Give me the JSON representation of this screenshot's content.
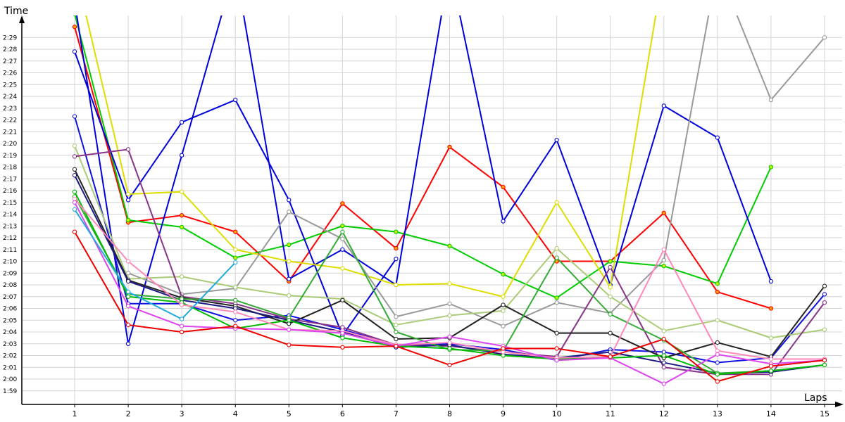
{
  "chart_data": {
    "type": "line",
    "ylabel": "Time",
    "xlabel": "Laps",
    "x": [
      1,
      2,
      3,
      4,
      5,
      6,
      7,
      8,
      9,
      10,
      11,
      12,
      13,
      14,
      15
    ],
    "y_ticks": [
      "1:59",
      "2:00",
      "2:01",
      "2:02",
      "2:03",
      "2:04",
      "2:05",
      "2:06",
      "2:07",
      "2:08",
      "2:09",
      "2:10",
      "2:11",
      "2:12",
      "2:13",
      "2:14",
      "2:15",
      "2:16",
      "2:17",
      "2:18",
      "2:19",
      "2:20",
      "2:21",
      "2:22",
      "2:23",
      "2:24",
      "2:25",
      "2:26",
      "2:27",
      "2:28",
      "2:29"
    ],
    "x_ticks": [
      "1",
      "2",
      "3",
      "4",
      "5",
      "6",
      "7",
      "8",
      "9",
      "10",
      "11",
      "12",
      "13",
      "14",
      "15"
    ],
    "ylim": [
      117.0,
      150.0
    ],
    "xlim": [
      0.0,
      15.5
    ],
    "grid": true,
    "series": [
      {
        "color": "#ff0000",
        "marker": "#ffa500",
        "values": [
          149.9,
          133.3,
          133.9,
          132.5,
          128.3,
          134.9,
          131.1,
          139.7,
          136.3,
          130.0,
          130.0,
          134.1,
          127.4,
          126.0,
          null
        ]
      },
      {
        "color": "#00cc00",
        "marker": "#ccee00",
        "values": [
          151.0,
          133.5,
          132.9,
          130.3,
          131.4,
          133.0,
          132.5,
          131.3,
          128.9,
          126.9,
          130.0,
          129.6,
          128.1,
          138.0,
          null
        ]
      },
      {
        "color": "#0000dd",
        "marker": "#ffffff",
        "values": [
          152.0,
          123.0,
          139.0,
          155.0,
          128.5,
          131.0,
          128.0,
          155.0,
          133.4,
          140.3,
          128.0,
          143.2,
          140.5,
          128.3,
          null
        ]
      },
      {
        "color": "#0000dd",
        "marker": "#ffffff",
        "values": [
          147.8,
          135.2,
          141.8,
          143.7,
          135.2,
          123.7,
          130.2,
          null,
          null,
          null,
          null,
          null,
          null,
          null,
          null
        ]
      },
      {
        "color": "#1010e0",
        "marker": "#ffffff",
        "values": [
          142.3,
          126.4,
          126.4,
          125.0,
          125.4,
          124.2,
          122.9,
          123.0,
          122.5,
          121.6,
          122.5,
          122.3,
          121.4,
          121.8,
          127.2
        ]
      },
      {
        "color": "#dddd00",
        "marker": "#ffffff",
        "values": [
          155.0,
          135.7,
          135.9,
          131.0,
          130.0,
          129.4,
          128.0,
          128.1,
          127.0,
          135.0,
          127.8,
          155.0,
          null,
          null,
          null
        ]
      },
      {
        "color": "#999999",
        "marker": "#ffffff",
        "values": [
          null,
          null,
          null,
          null,
          null,
          null,
          null,
          null,
          null,
          null,
          null,
          130.1,
          155.0,
          143.7,
          149.0
        ]
      },
      {
        "color": "#999999",
        "marker": "#ffffff",
        "values": [
          null,
          129.0,
          127.2,
          127.7,
          134.2,
          131.9,
          125.3,
          126.4,
          124.5,
          126.5,
          125.6,
          130.1,
          null,
          null,
          null
        ]
      },
      {
        "color": "#aacc77",
        "marker": "#ffffff",
        "values": [
          139.8,
          128.5,
          128.7,
          127.8,
          127.1,
          126.8,
          124.6,
          125.4,
          125.8,
          131.1,
          127.0,
          124.1,
          125.0,
          123.5,
          124.2
        ]
      },
      {
        "color": "#883388",
        "marker": "#ffffff",
        "values": [
          138.9,
          139.5,
          127.0,
          126.4,
          125.1,
          124.4,
          122.9,
          122.8,
          122.3,
          121.9,
          129.5,
          121.0,
          120.4,
          120.4,
          126.5
        ]
      },
      {
        "color": "#222222",
        "marker": "#ffffff",
        "values": [
          137.8,
          128.4,
          126.9,
          126.2,
          124.7,
          126.7,
          123.4,
          123.5,
          126.3,
          123.9,
          123.9,
          121.8,
          123.1,
          121.9,
          127.9
        ]
      },
      {
        "color": "#1a1a80",
        "marker": "#ffffff",
        "values": [
          137.3,
          128.3,
          126.7,
          126.0,
          125.0,
          124.0,
          122.7,
          122.9,
          122.1,
          121.8,
          122.3,
          121.4,
          120.5,
          120.6,
          121.2
        ]
      },
      {
        "color": "#33aa33",
        "marker": "#ffffff",
        "values": [
          135.5,
          127.2,
          126.8,
          126.7,
          125.2,
          132.5,
          124.0,
          122.5,
          122.4,
          130.3,
          125.5,
          123.3,
          120.5,
          120.7,
          121.2
        ]
      },
      {
        "color": "#00bb00",
        "marker": "#ffffff",
        "values": [
          135.9,
          127.0,
          126.5,
          124.3,
          125.0,
          123.5,
          122.8,
          122.6,
          122.0,
          121.7,
          121.8,
          122.0,
          120.4,
          120.7,
          121.2
        ]
      },
      {
        "color": "#ff88bb",
        "marker": "#ffffff",
        "values": [
          135.3,
          130.0,
          126.3,
          125.7,
          124.2,
          124.1,
          122.9,
          123.1,
          122.3,
          121.8,
          121.9,
          131.0,
          122.4,
          121.7,
          121.7
        ]
      },
      {
        "color": "#dd44ee",
        "marker": "#ffffff",
        "values": [
          135.0,
          126.2,
          124.5,
          124.3,
          124.2,
          123.9,
          122.8,
          123.6,
          122.8,
          121.6,
          121.8,
          119.6,
          122.1,
          121.3,
          121.6
        ]
      },
      {
        "color": "#22aadd",
        "marker": "#ffffff",
        "values": [
          134.4,
          127.4,
          125.1,
          129.9,
          null,
          null,
          null,
          null,
          null,
          null,
          null,
          null,
          null,
          null,
          null
        ]
      },
      {
        "color": "#ee0000",
        "marker": "#ffffff",
        "values": [
          132.5,
          124.6,
          124.0,
          124.5,
          122.9,
          122.7,
          122.8,
          121.2,
          122.6,
          122.6,
          121.9,
          123.4,
          119.8,
          121.1,
          121.6
        ]
      }
    ]
  }
}
